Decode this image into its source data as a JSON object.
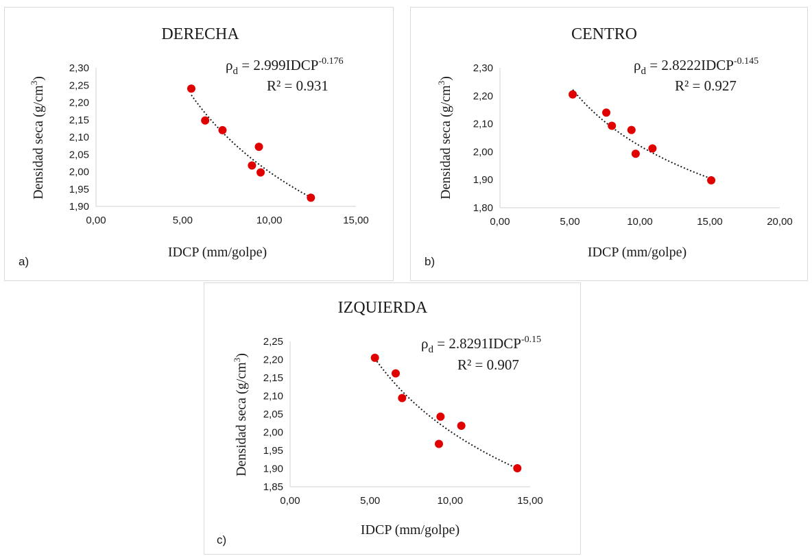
{
  "chart_data": [
    {
      "type": "scatter",
      "panel_label": "a)",
      "title": "DERECHA",
      "xlabel": "IDCP (mm/golpe)",
      "ylabel_base": "Densidad seca (g/cm",
      "ylabel_sup": "3",
      "ylabel_end": ")",
      "xlim": [
        0,
        15
      ],
      "ylim": [
        1.9,
        2.3
      ],
      "x_ticks": [
        0,
        5,
        10,
        15
      ],
      "x_tick_labels": [
        "0,00",
        "5,00",
        "10,00",
        "15,00"
      ],
      "y_ticks": [
        1.9,
        1.95,
        2.0,
        2.05,
        2.1,
        2.15,
        2.2,
        2.25,
        2.3
      ],
      "y_tick_labels": [
        "1,90",
        "1,95",
        "2,00",
        "2,05",
        "2,10",
        "2,15",
        "2,20",
        "2,25",
        "2,30"
      ],
      "grid": false,
      "points": [
        {
          "x": 5.5,
          "y": 2.24
        },
        {
          "x": 6.3,
          "y": 2.148
        },
        {
          "x": 7.3,
          "y": 2.12
        },
        {
          "x": 9.0,
          "y": 2.018
        },
        {
          "x": 9.4,
          "y": 2.072
        },
        {
          "x": 9.5,
          "y": 1.998
        },
        {
          "x": 12.4,
          "y": 1.925
        }
      ],
      "trendline": {
        "type": "power",
        "a": 2.999,
        "b": -0.176,
        "x_range": [
          5.5,
          12.4
        ]
      },
      "eq_rho": "ρ",
      "eq_sub": "d",
      "eq_rhs": " = 2.999IDCP",
      "eq_exp": "-0.176",
      "r2_text": "R² = 0.931",
      "marker_color": "#e00000",
      "trend_color": "#1a1a1a"
    },
    {
      "type": "scatter",
      "panel_label": "b)",
      "title": "CENTRO",
      "xlabel": "IDCP (mm/golpe)",
      "ylabel_base": "Densidad seca (g/cm",
      "ylabel_sup": "3",
      "ylabel_end": ")",
      "xlim": [
        0,
        20
      ],
      "ylim": [
        1.8,
        2.3
      ],
      "x_ticks": [
        0,
        5,
        10,
        15,
        20
      ],
      "x_tick_labels": [
        "0,00",
        "5,00",
        "10,00",
        "15,00",
        "20,00"
      ],
      "y_ticks": [
        1.8,
        1.9,
        2.0,
        2.1,
        2.2,
        2.3
      ],
      "y_tick_labels": [
        "1,80",
        "1,90",
        "2,00",
        "2,10",
        "2,20",
        "2,30"
      ],
      "grid": false,
      "points": [
        {
          "x": 5.2,
          "y": 2.205
        },
        {
          "x": 7.6,
          "y": 2.14
        },
        {
          "x": 8.0,
          "y": 2.093
        },
        {
          "x": 9.4,
          "y": 2.078
        },
        {
          "x": 9.7,
          "y": 1.993
        },
        {
          "x": 10.9,
          "y": 2.012
        },
        {
          "x": 15.1,
          "y": 1.898
        }
      ],
      "trendline": {
        "type": "power",
        "a": 2.8222,
        "b": -0.145,
        "x_range": [
          5.2,
          15.1
        ]
      },
      "eq_rho": "ρ",
      "eq_sub": "d",
      "eq_rhs": " = 2.8222IDCP",
      "eq_exp": "-0.145",
      "r2_text": "R² = 0.927",
      "marker_color": "#e00000",
      "trend_color": "#1a1a1a"
    },
    {
      "type": "scatter",
      "panel_label": "c)",
      "title": "IZQUIERDA",
      "xlabel": "IDCP (mm/golpe)",
      "ylabel_base": "Densidad seca (g/cm",
      "ylabel_sup": "3",
      "ylabel_end": ")",
      "xlim": [
        0,
        15
      ],
      "ylim": [
        1.85,
        2.25
      ],
      "x_ticks": [
        0,
        5,
        10,
        15
      ],
      "x_tick_labels": [
        "0,00",
        "5,00",
        "10,00",
        "15,00"
      ],
      "y_ticks": [
        1.85,
        1.9,
        1.95,
        2.0,
        2.05,
        2.1,
        2.15,
        2.2,
        2.25
      ],
      "y_tick_labels": [
        "1,85",
        "1,90",
        "1,95",
        "2,00",
        "2,05",
        "2,10",
        "2,15",
        "2,20",
        "2,25"
      ],
      "grid": false,
      "points": [
        {
          "x": 5.3,
          "y": 2.205
        },
        {
          "x": 6.6,
          "y": 2.162
        },
        {
          "x": 7.0,
          "y": 2.094
        },
        {
          "x": 9.3,
          "y": 1.968
        },
        {
          "x": 9.4,
          "y": 2.043
        },
        {
          "x": 10.7,
          "y": 2.018
        },
        {
          "x": 14.2,
          "y": 1.901
        }
      ],
      "trendline": {
        "type": "power",
        "a": 2.8291,
        "b": -0.15,
        "x_range": [
          5.3,
          14.2
        ]
      },
      "eq_rho": "ρ",
      "eq_sub": "d",
      "eq_rhs": " = 2.8291IDCP",
      "eq_exp": "-0.15",
      "r2_text": "R² = 0.907",
      "marker_color": "#e00000",
      "trend_color": "#1a1a1a"
    }
  ]
}
